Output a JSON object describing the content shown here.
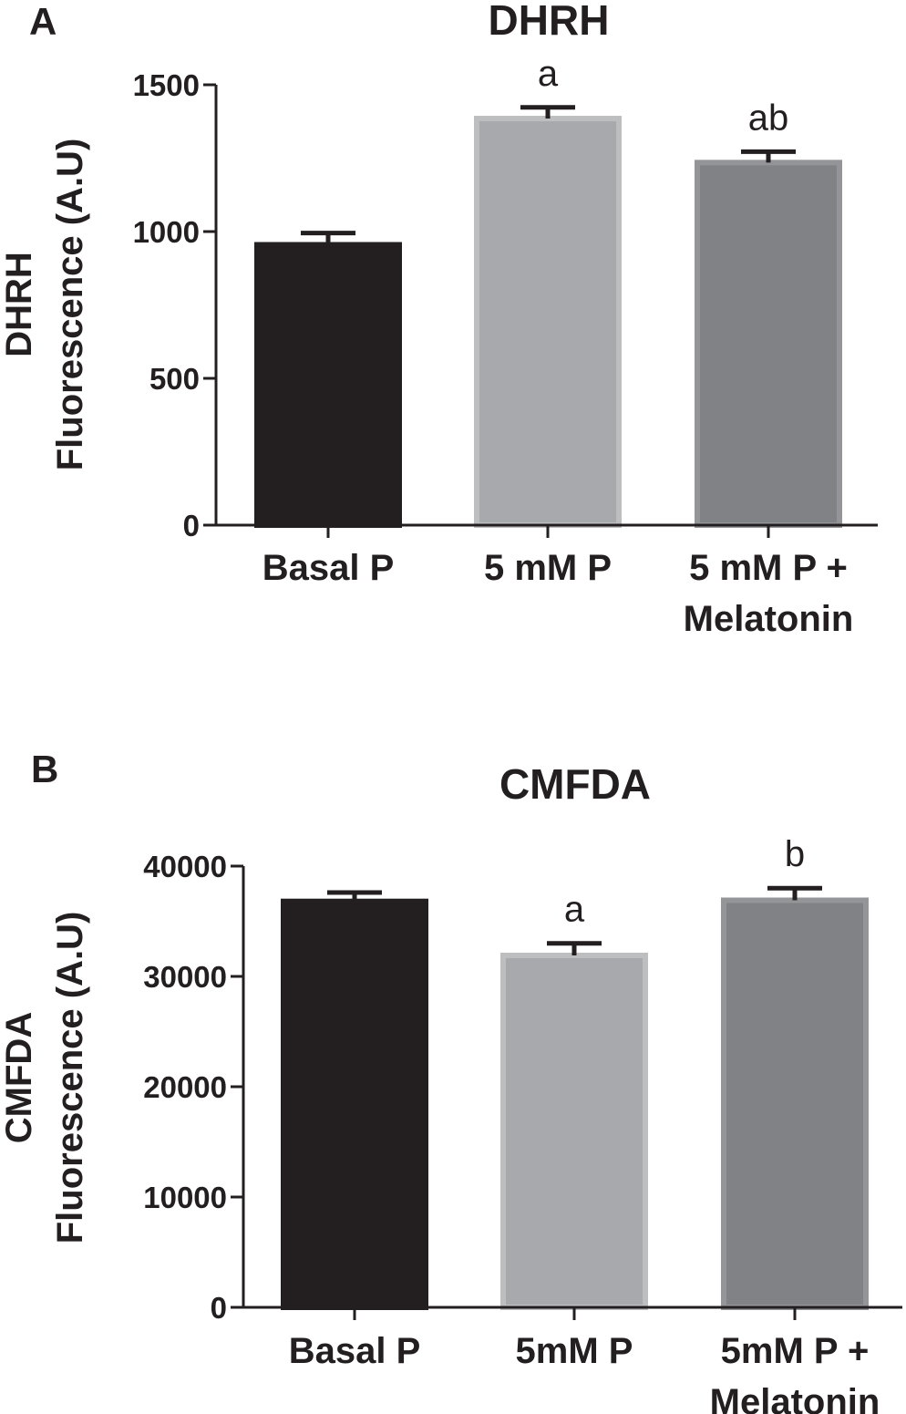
{
  "chart_data": [
    {
      "panel": "A",
      "type": "bar",
      "title": "DHRH",
      "ylabel_lines": [
        "DHRH",
        "Fluorescence (A.U)"
      ],
      "xlabel": "",
      "ylim": [
        0,
        1500
      ],
      "yticks": [
        0,
        500,
        1000,
        1500
      ],
      "categories": [
        {
          "lines": [
            "Basal P"
          ]
        },
        {
          "lines": [
            "5 mM P"
          ]
        },
        {
          "lines": [
            "5 mM P +",
            "Melatonin"
          ]
        }
      ],
      "values": [
        955,
        1385,
        1235
      ],
      "errors": [
        40,
        38,
        37
      ],
      "significance": [
        "",
        "a",
        "ab"
      ],
      "colors": [
        "#231f20",
        "#a7a9ac",
        "#808285"
      ],
      "edge_colors": [
        "#231f20",
        "#bcbec0",
        "#939598"
      ]
    },
    {
      "panel": "B",
      "type": "bar",
      "title": "CMFDA",
      "ylabel_lines": [
        "CMFDA",
        "Fluorescence (A.U)"
      ],
      "xlabel": "",
      "ylim": [
        0,
        40000
      ],
      "yticks": [
        0,
        10000,
        20000,
        30000,
        40000
      ],
      "categories": [
        {
          "lines": [
            "Basal P"
          ]
        },
        {
          "lines": [
            "5mM P"
          ]
        },
        {
          "lines": [
            "5mM P +",
            "Melatonin"
          ]
        }
      ],
      "values": [
        36800,
        31900,
        36900
      ],
      "errors": [
        800,
        1100,
        1100
      ],
      "significance": [
        "",
        "a",
        "b"
      ],
      "colors": [
        "#231f20",
        "#a7a9ac",
        "#808285"
      ],
      "edge_colors": [
        "#231f20",
        "#bcbec0",
        "#939598"
      ]
    }
  ]
}
